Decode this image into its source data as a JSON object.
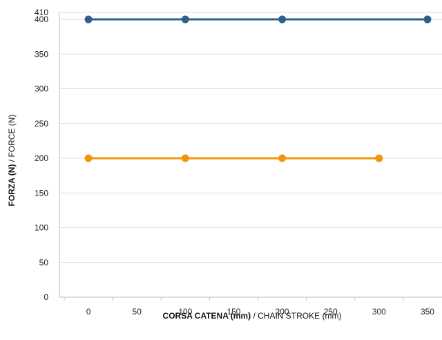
{
  "chart_data": {
    "type": "line",
    "xlabel_main": "CORSA CATENA (mm)",
    "xlabel_secondary": " / CHAIN STROKE (mm)",
    "ylabel_main": "FORZA (N)",
    "ylabel_secondary": " / FORCE (N)",
    "xlim": [
      -30,
      365
    ],
    "ylim": [
      0,
      410
    ],
    "x_ticks": [
      "0",
      "50",
      "100",
      "150",
      "200",
      "250",
      "300",
      "350"
    ],
    "y_ticks": [
      "0",
      "50",
      "100",
      "150",
      "200",
      "250",
      "300",
      "350",
      "400",
      "410"
    ],
    "grid": true,
    "series": [
      {
        "color": "#2e5f8a",
        "x": [
          0,
          100,
          200,
          350
        ],
        "y": [
          400,
          400,
          400,
          400
        ]
      },
      {
        "color": "#f0960a",
        "x": [
          0,
          100,
          200,
          300
        ],
        "y": [
          200,
          200,
          200,
          200
        ]
      }
    ]
  }
}
